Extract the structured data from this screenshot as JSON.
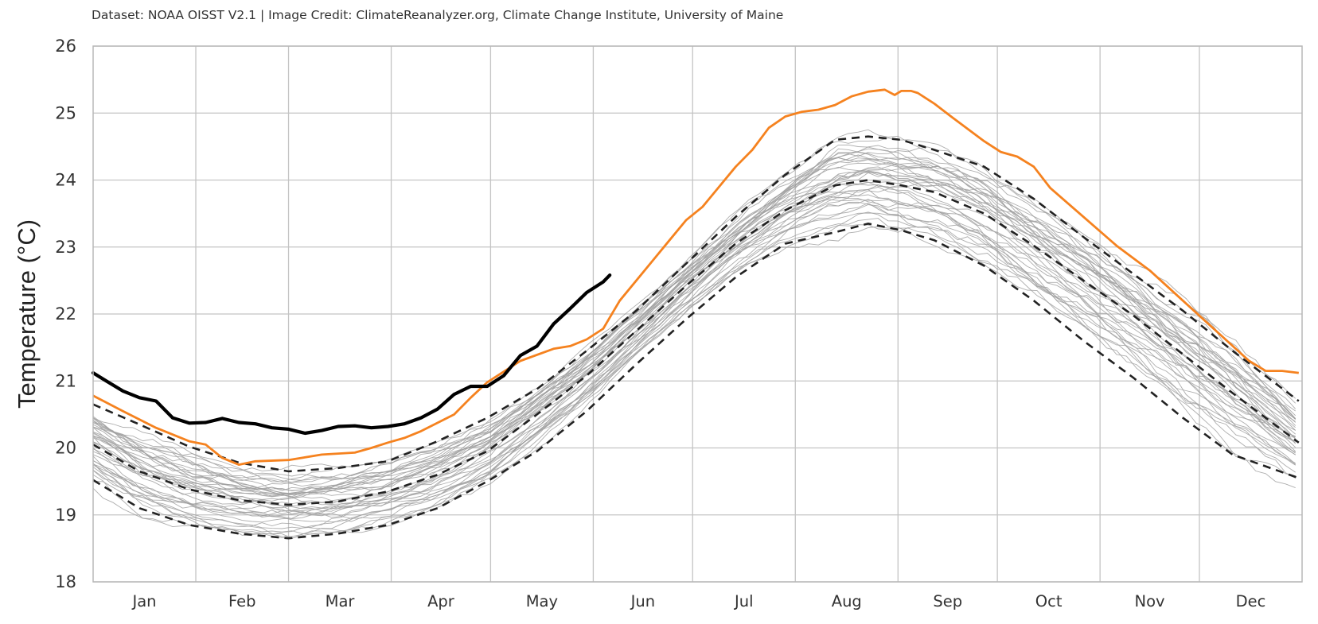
{
  "credit": "Dataset: NOAA OISST V2.1 | Image Credit: ClimateReanalyzer.org, Climate Change Institute, University of Maine",
  "colors": {
    "current": "#000000",
    "record": "#f5821f",
    "history": "#a0a0a0",
    "stats": "#222222",
    "grid": "#c4c4c4"
  },
  "chart_data": {
    "type": "line",
    "ylabel": "Temperature (°C)",
    "ylim": [
      18,
      26
    ],
    "yticks": [
      18,
      19,
      20,
      21,
      22,
      23,
      24,
      25,
      26
    ],
    "xlim": [
      1,
      366
    ],
    "months": [
      "Jan",
      "Feb",
      "Mar",
      "Apr",
      "May",
      "Jun",
      "Jul",
      "Aug",
      "Sep",
      "Oct",
      "Nov",
      "Dec"
    ],
    "grid": true,
    "series": [
      {
        "role": "current",
        "style": "solid-thick",
        "x": [
          1,
          5,
          10,
          15,
          20,
          25,
          30,
          35,
          40,
          45,
          50,
          55,
          60,
          65,
          70,
          75,
          80,
          85,
          90,
          95,
          100,
          105,
          110,
          115,
          120,
          125,
          130,
          135,
          140,
          145,
          150,
          155,
          157
        ],
        "y": [
          21.12,
          21.0,
          20.85,
          20.75,
          20.7,
          20.45,
          20.37,
          20.38,
          20.44,
          20.38,
          20.36,
          20.3,
          20.28,
          20.22,
          20.26,
          20.32,
          20.33,
          20.3,
          20.32,
          20.36,
          20.45,
          20.58,
          20.8,
          20.92,
          20.92,
          21.08,
          21.38,
          21.52,
          21.85,
          22.08,
          22.32,
          22.48,
          22.58
        ]
      },
      {
        "role": "record",
        "style": "solid-orange",
        "x": [
          1,
          10,
          20,
          30,
          35,
          40,
          45,
          50,
          60,
          70,
          80,
          85,
          90,
          95,
          100,
          110,
          115,
          120,
          130,
          140,
          145,
          150,
          155,
          160,
          170,
          175,
          180,
          185,
          190,
          195,
          200,
          205,
          210,
          215,
          220,
          225,
          230,
          235,
          240,
          243,
          245,
          248,
          250,
          255,
          260,
          270,
          275,
          280,
          285,
          290,
          300,
          310,
          320,
          330,
          340,
          350,
          355,
          360,
          365
        ],
        "y": [
          20.78,
          20.55,
          20.3,
          20.1,
          20.05,
          19.85,
          19.75,
          19.8,
          19.82,
          19.9,
          19.93,
          20.0,
          20.08,
          20.15,
          20.25,
          20.5,
          20.75,
          20.98,
          21.3,
          21.48,
          21.52,
          21.62,
          21.78,
          22.2,
          22.8,
          23.1,
          23.4,
          23.6,
          23.9,
          24.2,
          24.45,
          24.78,
          24.95,
          25.02,
          25.05,
          25.12,
          25.25,
          25.32,
          25.35,
          25.27,
          25.33,
          25.33,
          25.3,
          25.14,
          24.95,
          24.58,
          24.42,
          24.35,
          24.2,
          23.88,
          23.45,
          23.02,
          22.65,
          22.2,
          21.75,
          21.3,
          21.15,
          21.15,
          21.12
        ]
      },
      {
        "role": "mean-plus-2sd",
        "style": "dashed",
        "x": [
          1,
          15,
          30,
          45,
          60,
          75,
          90,
          105,
          120,
          135,
          150,
          165,
          180,
          195,
          210,
          225,
          235,
          245,
          255,
          270,
          285,
          300,
          315,
          330,
          345,
          365
        ],
        "y": [
          20.65,
          20.35,
          20.02,
          19.78,
          19.65,
          19.7,
          19.8,
          20.1,
          20.45,
          20.88,
          21.45,
          22.05,
          22.75,
          23.45,
          24.08,
          24.6,
          24.65,
          24.6,
          24.45,
          24.2,
          23.72,
          23.15,
          22.6,
          22.05,
          21.45,
          20.7
        ]
      },
      {
        "role": "mean",
        "style": "dashed",
        "x": [
          1,
          15,
          30,
          45,
          60,
          75,
          90,
          105,
          120,
          135,
          150,
          165,
          180,
          195,
          210,
          225,
          235,
          245,
          255,
          270,
          285,
          300,
          315,
          330,
          345,
          365
        ],
        "y": [
          20.05,
          19.65,
          19.38,
          19.22,
          19.15,
          19.2,
          19.35,
          19.6,
          19.95,
          20.5,
          21.08,
          21.75,
          22.42,
          23.05,
          23.55,
          23.92,
          24.0,
          23.92,
          23.82,
          23.5,
          23.02,
          22.5,
          21.98,
          21.4,
          20.82,
          20.08
        ]
      },
      {
        "role": "mean-minus-2sd",
        "style": "dashed",
        "x": [
          1,
          15,
          30,
          45,
          60,
          75,
          90,
          105,
          120,
          135,
          150,
          165,
          180,
          195,
          210,
          225,
          235,
          245,
          255,
          270,
          285,
          300,
          315,
          330,
          345,
          365
        ],
        "y": [
          19.52,
          19.1,
          18.85,
          18.72,
          18.65,
          18.72,
          18.85,
          19.1,
          19.5,
          19.95,
          20.55,
          21.25,
          21.92,
          22.55,
          23.05,
          23.22,
          23.35,
          23.25,
          23.1,
          22.72,
          22.2,
          21.6,
          21.05,
          20.45,
          19.9,
          19.55
        ]
      }
    ]
  }
}
